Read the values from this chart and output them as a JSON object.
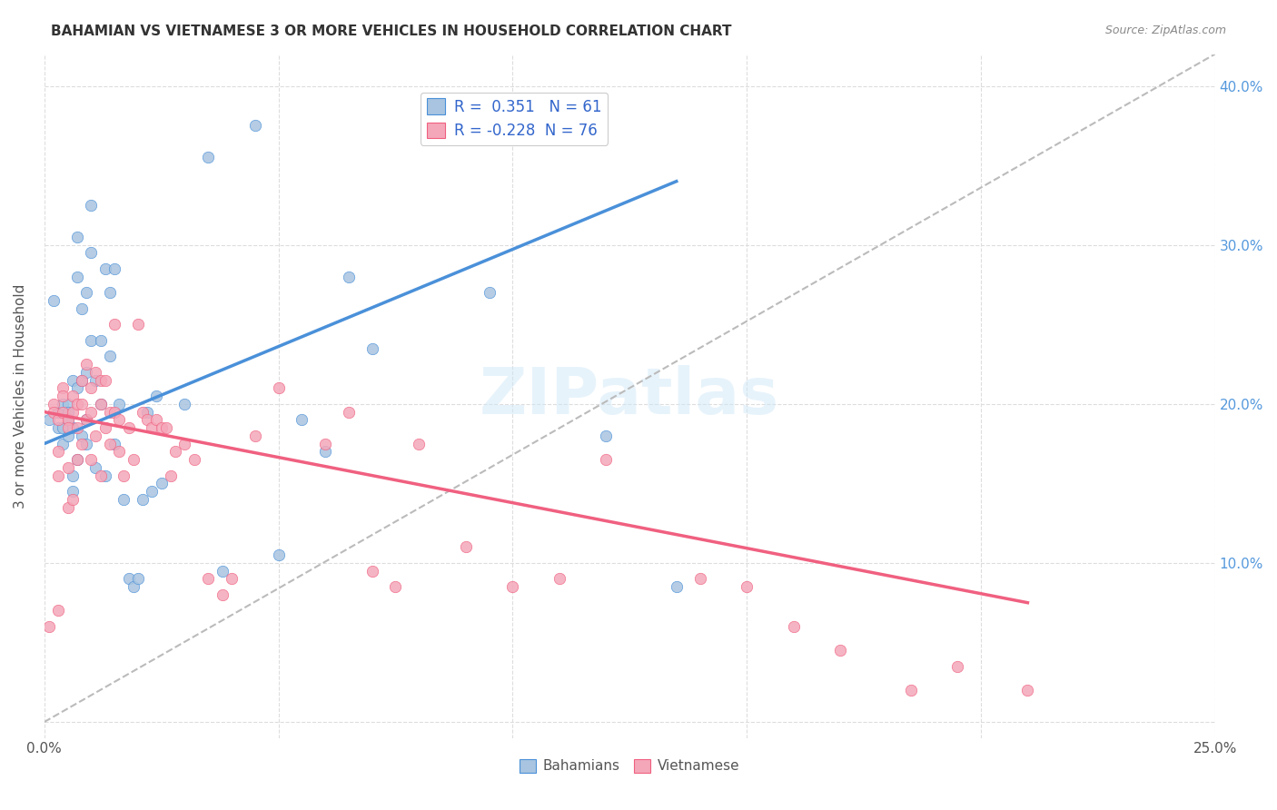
{
  "title": "BAHAMIAN VS VIETNAMESE 3 OR MORE VEHICLES IN HOUSEHOLD CORRELATION CHART",
  "source": "Source: ZipAtlas.com",
  "ylabel": "3 or more Vehicles in Household",
  "xlabel_bahamians": "Bahamians",
  "xlabel_vietnamese": "Vietnamese",
  "watermark": "ZIPatlas",
  "xlim": [
    0.0,
    0.25
  ],
  "ylim": [
    -0.01,
    0.42
  ],
  "x_ticks": [
    0.0,
    0.05,
    0.1,
    0.15,
    0.2,
    0.25
  ],
  "x_tick_labels": [
    "0.0%",
    "",
    "",
    "",
    "",
    "25.0%"
  ],
  "y_ticks": [
    0.0,
    0.1,
    0.2,
    0.3,
    0.4
  ],
  "y_tick_labels_right": [
    "",
    "10.0%",
    "20.0%",
    "30.0%",
    "40.0%"
  ],
  "bahamian_R": 0.351,
  "bahamian_N": 61,
  "vietnamese_R": -0.228,
  "vietnamese_N": 76,
  "bahamian_color": "#a8c4e0",
  "vietnamese_color": "#f4a7b9",
  "bahamian_line_color": "#4a90d9",
  "vietnamese_line_color": "#f06080",
  "trend_line_dashed_color": "#bbbbbb",
  "bahamian_scatter_x": [
    0.001,
    0.002,
    0.003,
    0.003,
    0.004,
    0.004,
    0.004,
    0.005,
    0.005,
    0.005,
    0.005,
    0.006,
    0.006,
    0.006,
    0.006,
    0.007,
    0.007,
    0.007,
    0.007,
    0.008,
    0.008,
    0.008,
    0.009,
    0.009,
    0.009,
    0.009,
    0.01,
    0.01,
    0.01,
    0.011,
    0.011,
    0.012,
    0.012,
    0.013,
    0.013,
    0.014,
    0.014,
    0.015,
    0.015,
    0.016,
    0.017,
    0.018,
    0.019,
    0.02,
    0.021,
    0.022,
    0.023,
    0.024,
    0.025,
    0.03,
    0.035,
    0.038,
    0.045,
    0.05,
    0.055,
    0.06,
    0.065,
    0.07,
    0.095,
    0.12,
    0.135
  ],
  "bahamian_scatter_y": [
    0.19,
    0.265,
    0.185,
    0.195,
    0.2,
    0.185,
    0.175,
    0.2,
    0.195,
    0.19,
    0.18,
    0.215,
    0.185,
    0.155,
    0.145,
    0.305,
    0.28,
    0.21,
    0.165,
    0.26,
    0.215,
    0.18,
    0.27,
    0.22,
    0.19,
    0.175,
    0.325,
    0.295,
    0.24,
    0.215,
    0.16,
    0.24,
    0.2,
    0.285,
    0.155,
    0.27,
    0.23,
    0.285,
    0.175,
    0.2,
    0.14,
    0.09,
    0.085,
    0.09,
    0.14,
    0.195,
    0.145,
    0.205,
    0.15,
    0.2,
    0.355,
    0.095,
    0.375,
    0.105,
    0.19,
    0.17,
    0.28,
    0.235,
    0.27,
    0.18,
    0.085
  ],
  "vietnamese_scatter_x": [
    0.001,
    0.002,
    0.002,
    0.003,
    0.003,
    0.003,
    0.003,
    0.004,
    0.004,
    0.004,
    0.005,
    0.005,
    0.005,
    0.005,
    0.006,
    0.006,
    0.006,
    0.007,
    0.007,
    0.007,
    0.008,
    0.008,
    0.008,
    0.009,
    0.009,
    0.01,
    0.01,
    0.01,
    0.011,
    0.011,
    0.012,
    0.012,
    0.012,
    0.013,
    0.013,
    0.014,
    0.014,
    0.015,
    0.015,
    0.016,
    0.016,
    0.017,
    0.018,
    0.019,
    0.02,
    0.021,
    0.022,
    0.023,
    0.024,
    0.025,
    0.026,
    0.027,
    0.028,
    0.03,
    0.032,
    0.035,
    0.038,
    0.04,
    0.045,
    0.05,
    0.06,
    0.065,
    0.07,
    0.075,
    0.08,
    0.09,
    0.1,
    0.11,
    0.12,
    0.14,
    0.15,
    0.16,
    0.17,
    0.185,
    0.195,
    0.21
  ],
  "vietnamese_scatter_y": [
    0.06,
    0.2,
    0.195,
    0.19,
    0.17,
    0.155,
    0.07,
    0.21,
    0.205,
    0.195,
    0.19,
    0.185,
    0.16,
    0.135,
    0.205,
    0.195,
    0.14,
    0.2,
    0.185,
    0.165,
    0.215,
    0.2,
    0.175,
    0.225,
    0.19,
    0.21,
    0.195,
    0.165,
    0.22,
    0.18,
    0.215,
    0.2,
    0.155,
    0.215,
    0.185,
    0.195,
    0.175,
    0.25,
    0.195,
    0.19,
    0.17,
    0.155,
    0.185,
    0.165,
    0.25,
    0.195,
    0.19,
    0.185,
    0.19,
    0.185,
    0.185,
    0.155,
    0.17,
    0.175,
    0.165,
    0.09,
    0.08,
    0.09,
    0.18,
    0.21,
    0.175,
    0.195,
    0.095,
    0.085,
    0.175,
    0.11,
    0.085,
    0.09,
    0.165,
    0.09,
    0.085,
    0.06,
    0.045,
    0.02,
    0.035,
    0.02
  ],
  "bahamian_trend_x": [
    0.0,
    0.135
  ],
  "bahamian_trend_y": [
    0.175,
    0.34
  ],
  "vietnamese_trend_x": [
    0.0,
    0.21
  ],
  "vietnamese_trend_y": [
    0.195,
    0.075
  ],
  "dashed_trend_x": [
    0.0,
    0.25
  ],
  "dashed_trend_y": [
    0.0,
    0.42
  ],
  "background_color": "#ffffff",
  "grid_color": "#dddddd"
}
